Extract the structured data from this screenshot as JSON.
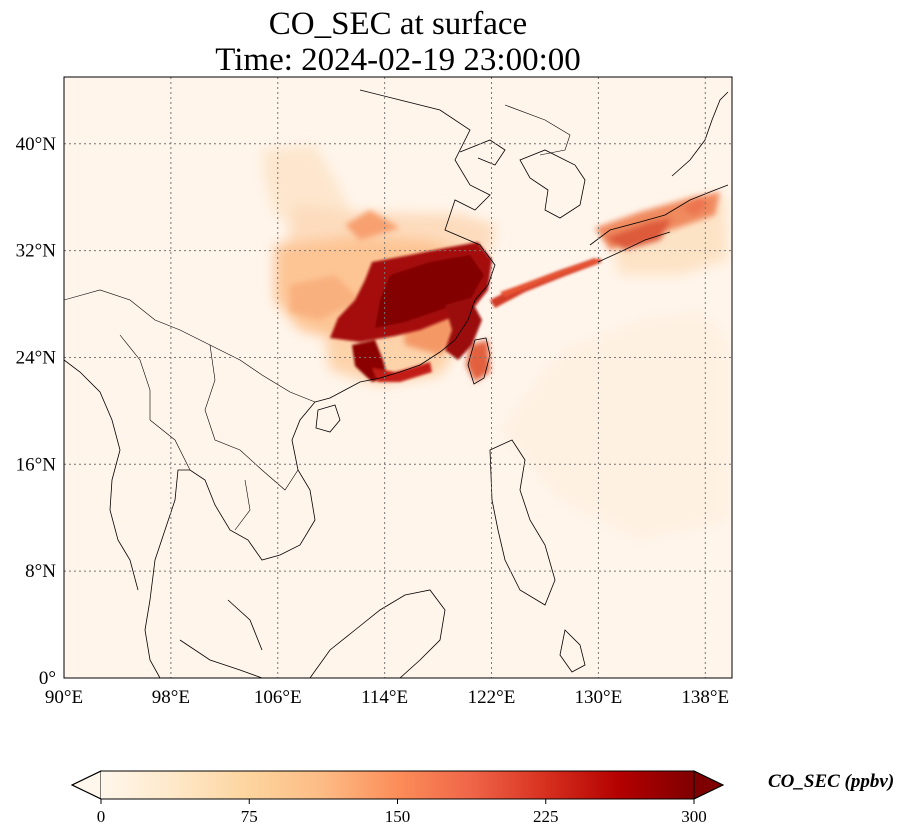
{
  "title": {
    "line1": "CO_SEC at surface",
    "line2": "Time: 2024-02-19 23:00:00"
  },
  "map": {
    "lon_range": [
      90,
      140
    ],
    "lat_range": [
      0,
      45
    ],
    "lon_ticks": [
      {
        "value": 90,
        "label": "90°E"
      },
      {
        "value": 98,
        "label": "98°E"
      },
      {
        "value": 106,
        "label": "106°E"
      },
      {
        "value": 114,
        "label": "114°E"
      },
      {
        "value": 122,
        "label": "122°E"
      },
      {
        "value": 130,
        "label": "130°E"
      },
      {
        "value": 138,
        "label": "138°E"
      }
    ],
    "lat_ticks": [
      {
        "value": 0,
        "label": "0°"
      },
      {
        "value": 8,
        "label": "8°N"
      },
      {
        "value": 16,
        "label": "16°N"
      },
      {
        "value": 24,
        "label": "24°N"
      },
      {
        "value": 32,
        "label": "32°N"
      },
      {
        "value": 40,
        "label": "40°N"
      }
    ],
    "gridlines": true,
    "background_color": "#fff5eb",
    "coastline_color": "#000000"
  },
  "colorbar": {
    "label": "CO_SEC (ppbv)",
    "colormap": "OrRd",
    "range": [
      0,
      300
    ],
    "extend": "both",
    "ticks": [
      {
        "value": 0,
        "label": "0"
      },
      {
        "value": 75,
        "label": "75"
      },
      {
        "value": 150,
        "label": "150"
      },
      {
        "value": 225,
        "label": "225"
      },
      {
        "value": 300,
        "label": "300"
      }
    ],
    "stops": [
      "#fff7ec",
      "#fee8c8",
      "#fdd49e",
      "#fdbb84",
      "#fc8d59",
      "#ef6548",
      "#d7301f",
      "#b30000",
      "#7f0000"
    ]
  }
}
